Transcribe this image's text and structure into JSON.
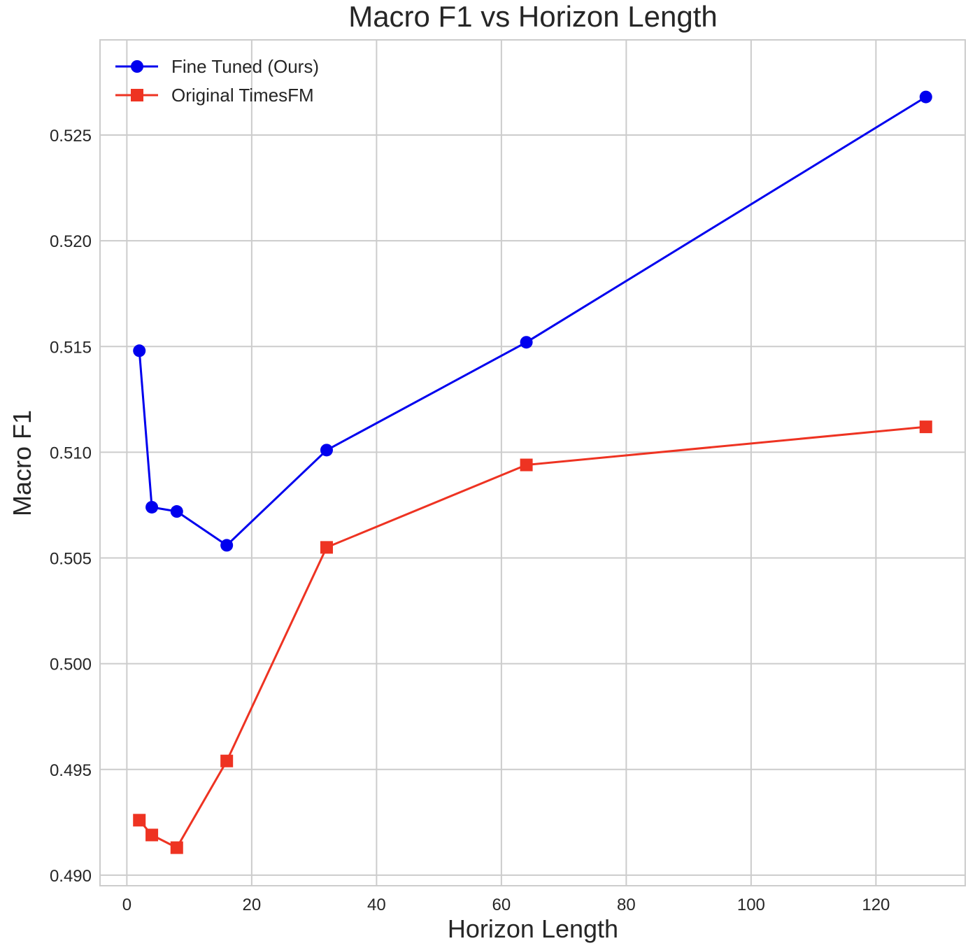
{
  "chart_data": {
    "type": "line",
    "title": "Macro F1 vs Horizon Length",
    "xlabel": "Horizon Length",
    "ylabel": "Macro F1",
    "xlim": [
      -4.3,
      134.3
    ],
    "ylim": [
      0.4895,
      0.5295
    ],
    "xticks": [
      0,
      20,
      40,
      60,
      80,
      100,
      120
    ],
    "yticks": [
      0.49,
      0.495,
      0.5,
      0.505,
      0.51,
      0.515,
      0.52,
      0.525
    ],
    "xtick_labels": [
      "0",
      "20",
      "40",
      "60",
      "80",
      "100",
      "120"
    ],
    "ytick_labels": [
      "0.490",
      "0.495",
      "0.500",
      "0.505",
      "0.510",
      "0.515",
      "0.520",
      "0.525"
    ],
    "grid": true,
    "legend_position": "top-left",
    "x": [
      2,
      4,
      8,
      16,
      32,
      64,
      128
    ],
    "series": [
      {
        "name": "Fine Tuned (Ours)",
        "color": "#0000ee",
        "marker": "circle",
        "values": [
          0.5148,
          0.5074,
          0.5072,
          0.5056,
          0.5101,
          0.5152,
          0.5268
        ]
      },
      {
        "name": "Original TimesFM",
        "color": "#ee3322",
        "marker": "square",
        "values": [
          0.4926,
          0.4919,
          0.4913,
          0.4954,
          0.5055,
          0.5094,
          0.5112
        ]
      }
    ]
  }
}
